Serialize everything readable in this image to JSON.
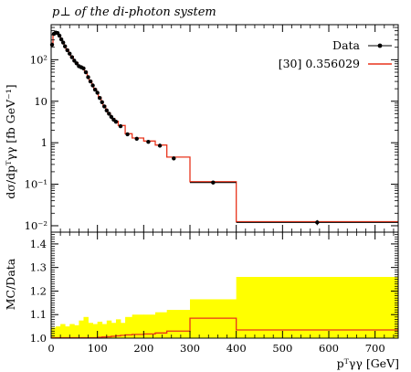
{
  "chart_data": [
    {
      "type": "line",
      "panel": "main",
      "title": "p⊥ of the di-photon system",
      "ylabel": "dσ/dpᵀγγ [fb GeV⁻¹]",
      "yscale": "log",
      "ylim": [
        0.007,
        700
      ],
      "xlim": [
        0,
        750
      ],
      "y_tick_labels": [
        "10⁻²",
        "10⁻¹",
        "1",
        "10",
        "10²"
      ],
      "y_tick_values": [
        0.01,
        0.1,
        1,
        10,
        100
      ],
      "legend_position": "top-right",
      "series": [
        {
          "name": "Data",
          "kind": "points-with-errors",
          "color": "#000000",
          "x": [
            2,
            6,
            10,
            14,
            18,
            22,
            26,
            30,
            35,
            40,
            45,
            50,
            55,
            60,
            65,
            70,
            75,
            80,
            85,
            90,
            95,
            100,
            105,
            110,
            115,
            120,
            125,
            130,
            135,
            140,
            150,
            165,
            185,
            210,
            235,
            265,
            350,
            575
          ],
          "y": [
            230,
            420,
            450,
            440,
            380,
            310,
            260,
            210,
            170,
            140,
            115,
            95,
            82,
            70,
            66,
            62,
            50,
            38,
            30,
            24,
            19,
            16,
            12,
            9.5,
            7.5,
            6.0,
            5.0,
            4.2,
            3.6,
            3.2,
            2.5,
            1.6,
            1.25,
            1.05,
            0.85,
            0.42,
            0.11,
            0.012
          ],
          "yerr": [
            0.06,
            0.05,
            0.05,
            0.05,
            0.05,
            0.05,
            0.05,
            0.05,
            0.05,
            0.05,
            0.05,
            0.05,
            0.05,
            0.05,
            0.05,
            0.05,
            0.05,
            0.05,
            0.05,
            0.05,
            0.05,
            0.05,
            0.05,
            0.05,
            0.05,
            0.05,
            0.05,
            0.05,
            0.05,
            0.05,
            0.05,
            0.06,
            0.07,
            0.08,
            0.08,
            0.1,
            0.1,
            0.14
          ]
        },
        {
          "name": "[30] 0.356029",
          "kind": "histogram",
          "color": "#e8341c",
          "edges": [
            0,
            4,
            8,
            12,
            16,
            20,
            24,
            28,
            32,
            38,
            42,
            48,
            52,
            58,
            62,
            68,
            72,
            78,
            82,
            88,
            92,
            98,
            102,
            108,
            112,
            118,
            122,
            128,
            132,
            138,
            145,
            160,
            175,
            200,
            225,
            250,
            300,
            400,
            750
          ],
          "values": [
            250,
            440,
            470,
            450,
            390,
            320,
            270,
            220,
            175,
            145,
            120,
            98,
            85,
            73,
            68,
            64,
            52,
            40,
            31,
            25,
            20,
            16.5,
            12.5,
            10,
            7.8,
            6.3,
            5.2,
            4.4,
            3.8,
            3.3,
            2.6,
            1.65,
            1.3,
            1.1,
            0.88,
            0.45,
            0.115,
            0.0125
          ]
        }
      ]
    },
    {
      "type": "area",
      "panel": "ratio",
      "ylabel": "MC/Data",
      "xlabel": "pᵀγγ [GeV]",
      "ylim": [
        1.0,
        1.45
      ],
      "xlim": [
        0,
        750
      ],
      "y_ticks": [
        1.0,
        1.1,
        1.2,
        1.3,
        1.4
      ],
      "y_tick_labels": [
        "1.0",
        "1.1",
        "1.2",
        "1.3",
        "1.4"
      ],
      "x_ticks": [
        0,
        100,
        200,
        300,
        400,
        500,
        600,
        700
      ],
      "x_tick_labels": [
        "0",
        "100",
        "200",
        "300",
        "400",
        "500",
        "600",
        "700"
      ],
      "band": {
        "color": "#ffff00",
        "edges": [
          0,
          10,
          20,
          30,
          40,
          50,
          60,
          70,
          80,
          90,
          100,
          110,
          120,
          130,
          140,
          150,
          160,
          175,
          200,
          225,
          250,
          300,
          400,
          750
        ],
        "upper": [
          1.045,
          1.05,
          1.06,
          1.05,
          1.06,
          1.055,
          1.075,
          1.09,
          1.065,
          1.06,
          1.07,
          1.06,
          1.075,
          1.065,
          1.08,
          1.065,
          1.09,
          1.1,
          1.1,
          1.11,
          1.12,
          1.165,
          1.26,
          1.26
        ]
      },
      "ratio_line": {
        "color": "#e8341c",
        "edges": [
          0,
          100,
          110,
          120,
          130,
          140,
          150,
          160,
          175,
          200,
          225,
          250,
          300,
          400,
          750
        ],
        "values": [
          1.002,
          1.004,
          1.005,
          1.006,
          1.008,
          1.01,
          1.012,
          1.014,
          1.016,
          1.018,
          1.022,
          1.03,
          1.085,
          1.035,
          1.035
        ]
      }
    }
  ]
}
